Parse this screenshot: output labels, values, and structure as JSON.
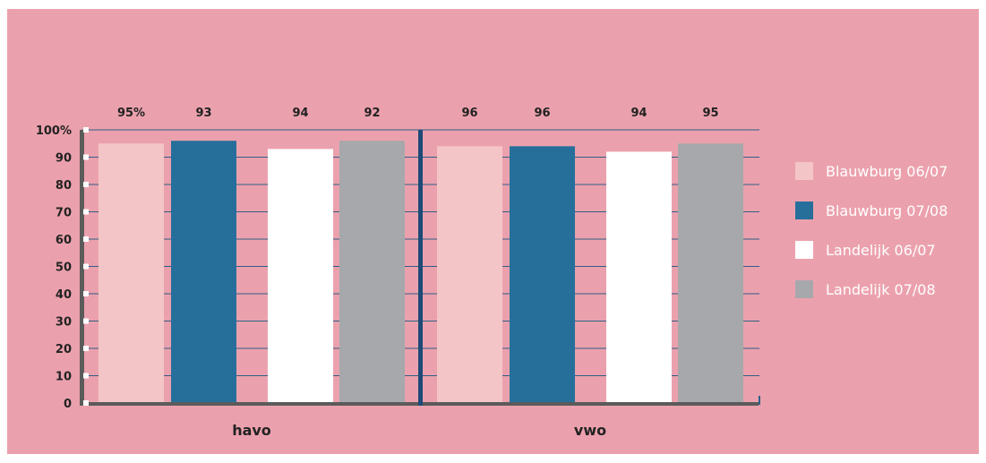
{
  "chart_data": {
    "type": "bar",
    "categories": [
      "havo",
      "vwo"
    ],
    "series": [
      {
        "name": "Blauwburg 06/07",
        "color": "#f4c5c6",
        "values": [
          95,
          94
        ]
      },
      {
        "name": "Blauwburg 07/08",
        "color": "#276f9b",
        "values": [
          96,
          94
        ]
      },
      {
        "name": "Landelijk 06/07",
        "color": "#ffffff",
        "values": [
          93,
          92
        ]
      },
      {
        "name": "Landelijk 07/08",
        "color": "#a7a8ab",
        "values": [
          96,
          95
        ]
      }
    ],
    "data_labels": [
      [
        "95%",
        "93",
        "94",
        "92"
      ],
      [
        "96",
        "96",
        "94",
        "95"
      ]
    ],
    "y_ticks": [
      "0",
      "10",
      "20",
      "30",
      "40",
      "50",
      "60",
      "70",
      "80",
      "90",
      "100%"
    ],
    "ylim": [
      0,
      100
    ],
    "grid": true,
    "legend_position": "right",
    "colors": {
      "background": "#eba1ad",
      "gridline": "#2f5f86",
      "axis": "#5b5b5b",
      "divider": "#1e4a78",
      "label_text": "#222222"
    }
  }
}
